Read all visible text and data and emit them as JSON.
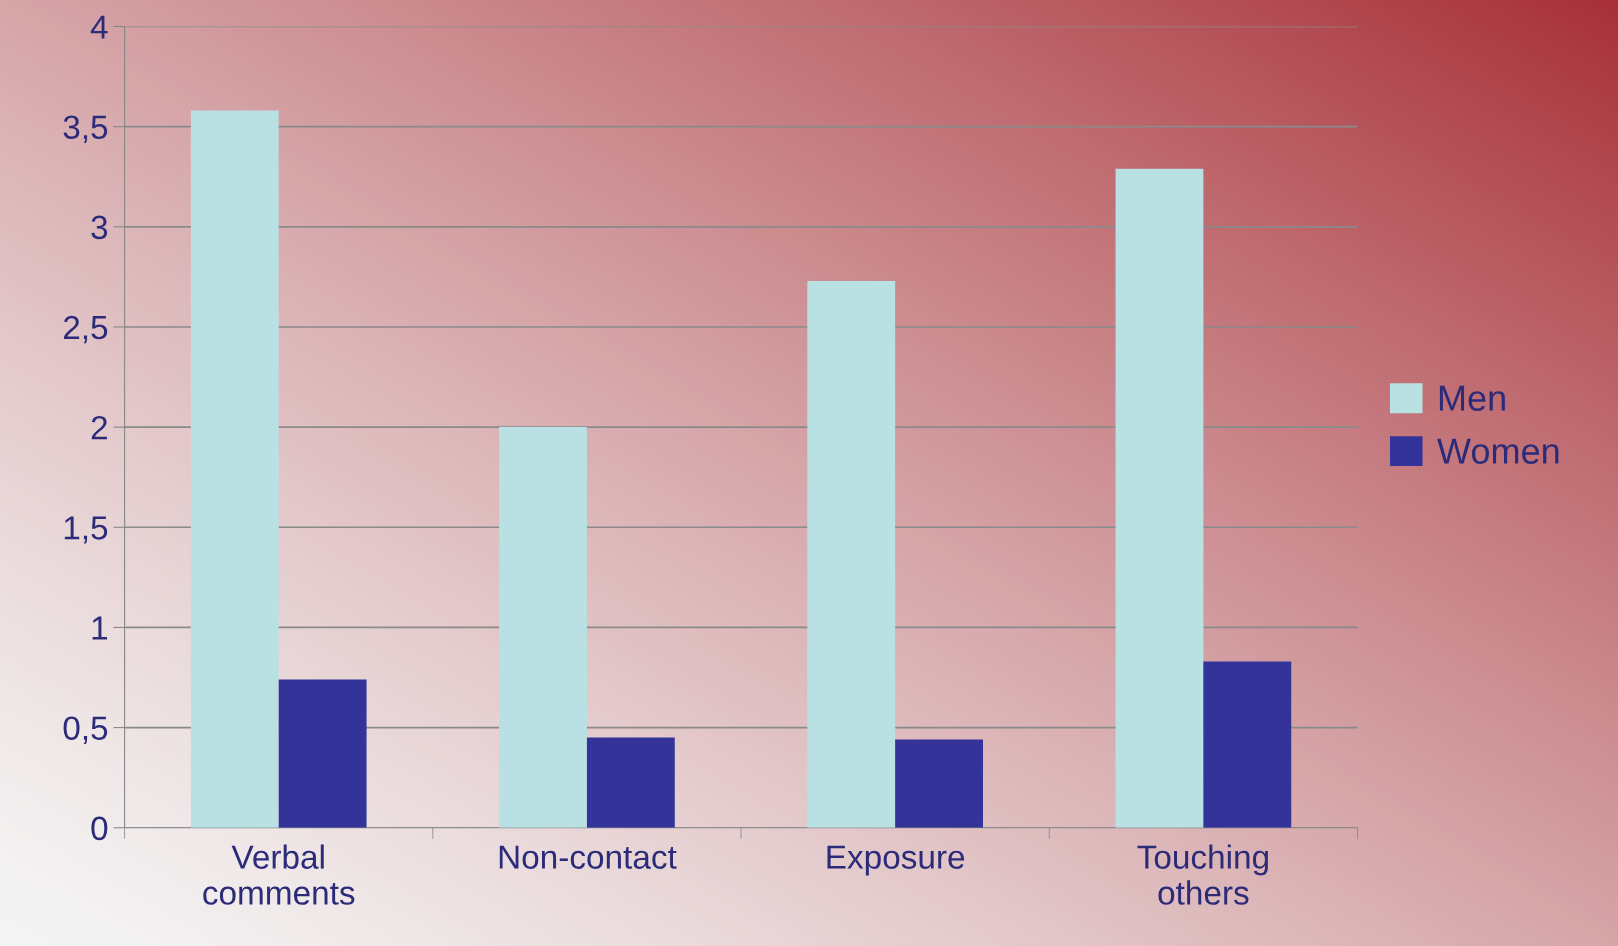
{
  "chart_data": {
    "type": "bar",
    "categories": [
      "Verbal\ncomments",
      "Non-contact",
      "Exposure",
      "Touching\nothers"
    ],
    "series": [
      {
        "name": "Men",
        "color": "#b9e0e3",
        "values": [
          3.58,
          2.0,
          2.73,
          3.29
        ]
      },
      {
        "name": "Women",
        "color": "#333399",
        "values": [
          0.74,
          0.45,
          0.44,
          0.83
        ]
      }
    ],
    "ylim": [
      0,
      4
    ],
    "yticks": [
      0,
      {
        "value": 0.5,
        "label": "0,5"
      },
      1,
      {
        "value": 1.5,
        "label": "1,5"
      },
      2,
      {
        "value": 2.5,
        "label": "2,5"
      },
      3,
      {
        "value": 3.5,
        "label": "3,5"
      },
      4
    ],
    "grid": "y",
    "legend": "right"
  }
}
